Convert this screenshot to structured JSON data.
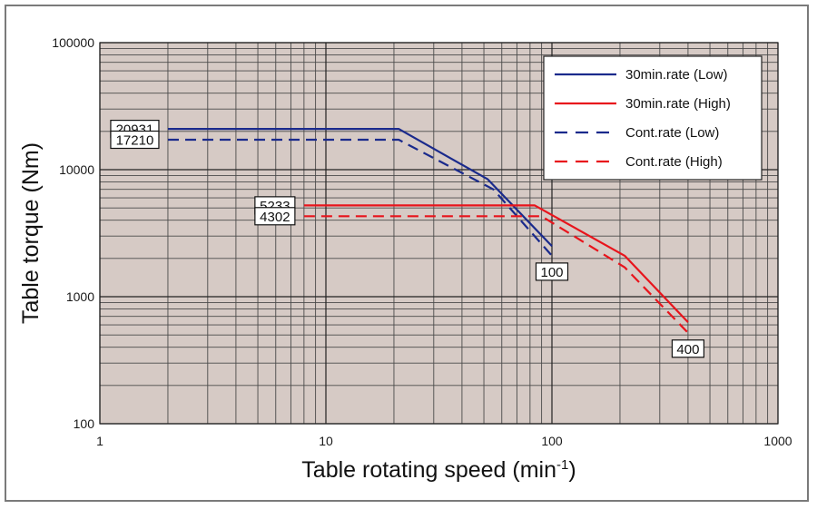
{
  "chart_data": {
    "type": "line",
    "xlabel": "Table rotating speed (min",
    "xlabel_superscript": "-1",
    "xlabel_suffix": ")",
    "ylabel": "Table torque (Nm)",
    "xscale": "log",
    "yscale": "log",
    "xlim": [
      1,
      1000
    ],
    "ylim": [
      100,
      100000
    ],
    "x_ticks": [
      {
        "value": 1,
        "label": "1"
      },
      {
        "value": 10,
        "label": "10"
      },
      {
        "value": 100,
        "label": "100"
      },
      {
        "value": 1000,
        "label": "1000"
      }
    ],
    "y_ticks": [
      {
        "value": 100,
        "label": "100"
      },
      {
        "value": 1000,
        "label": "1000"
      },
      {
        "value": 10000,
        "label": "10000"
      },
      {
        "value": 100000,
        "label": "100000"
      }
    ],
    "grid": true,
    "plot_background": "#d6cac5",
    "legend_position": "top-right",
    "series": [
      {
        "name": "30min.rate (Low)",
        "color": "#1a2a8c",
        "dash": "solid",
        "points": [
          [
            2,
            20931
          ],
          [
            21,
            20931
          ],
          [
            52,
            8400
          ],
          [
            100,
            2500
          ]
        ]
      },
      {
        "name": "30min.rate (High)",
        "color": "#e8141c",
        "dash": "solid",
        "points": [
          [
            8,
            5233
          ],
          [
            84,
            5233
          ],
          [
            210,
            2100
          ],
          [
            400,
            630
          ]
        ]
      },
      {
        "name": "Cont.rate (Low)",
        "color": "#1a2a8c",
        "dash": "dashed",
        "points": [
          [
            2,
            17210
          ],
          [
            21,
            17210
          ],
          [
            55,
            7000
          ],
          [
            100,
            2100
          ]
        ]
      },
      {
        "name": "Cont.rate (High)",
        "color": "#e8141c",
        "dash": "dashed",
        "points": [
          [
            8,
            4302
          ],
          [
            90,
            4302
          ],
          [
            210,
            1700
          ],
          [
            400,
            520
          ]
        ]
      }
    ],
    "annotations": [
      {
        "text": "20931",
        "x": 2,
        "y": 20931,
        "anchor": "left-of"
      },
      {
        "text": "17210",
        "x": 2,
        "y": 17210,
        "anchor": "left-of"
      },
      {
        "text": "5233",
        "x": 8,
        "y": 5233,
        "anchor": "left-of"
      },
      {
        "text": "4302",
        "x": 8,
        "y": 4302,
        "anchor": "left-of"
      },
      {
        "text": "100",
        "x": 100,
        "y": 2100,
        "anchor": "below"
      },
      {
        "text": "400",
        "x": 400,
        "y": 520,
        "anchor": "below"
      }
    ]
  }
}
